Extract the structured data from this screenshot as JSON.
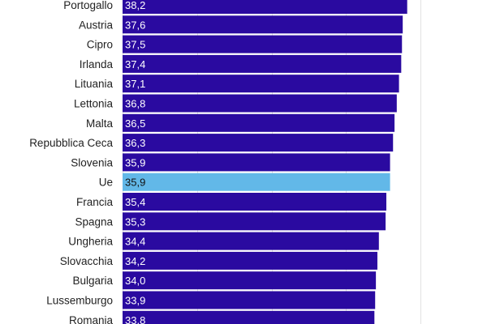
{
  "chart_data": {
    "type": "bar",
    "orientation": "horizontal",
    "title": "",
    "xlabel": "",
    "ylabel": "",
    "xlim": [
      0,
      45
    ],
    "grid": true,
    "categories": [
      "Portogallo",
      "Austria",
      "Cipro",
      "Irlanda",
      "Lituania",
      "Lettonia",
      "Malta",
      "Repubblica Ceca",
      "Slovenia",
      "Ue",
      "Francia",
      "Spagna",
      "Ungheria",
      "Slovacchia",
      "Bulgaria",
      "Lussemburgo",
      "Romania"
    ],
    "values": [
      38.2,
      37.6,
      37.5,
      37.4,
      37.1,
      36.8,
      36.5,
      36.3,
      35.9,
      35.9,
      35.4,
      35.3,
      34.4,
      34.2,
      34.0,
      33.9,
      33.8
    ],
    "value_labels": [
      "38,2",
      "37,6",
      "37,5",
      "37,4",
      "37,1",
      "36,8",
      "36,5",
      "36,3",
      "35,9",
      "35,9",
      "35,4",
      "35,3",
      "34,4",
      "34,2",
      "34,0",
      "33,9",
      "33,8"
    ],
    "highlight_category": "Ue",
    "colors": {
      "bar": "#2a0aa0",
      "highlight": "#62b8e8"
    }
  }
}
